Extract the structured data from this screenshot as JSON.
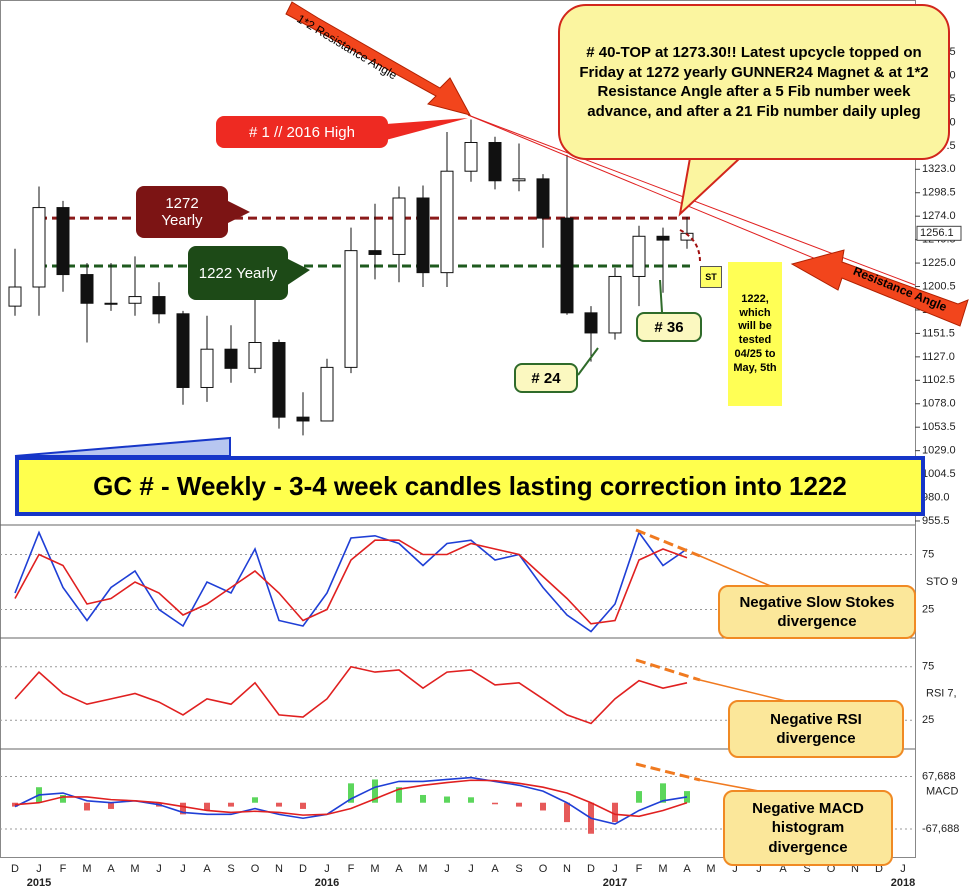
{
  "chart_data": [
    {
      "type": "candlestick",
      "categories": [
        "D",
        "J",
        "F",
        "M",
        "A",
        "M",
        "J",
        "J",
        "A",
        "S",
        "O",
        "N",
        "D",
        "J",
        "F",
        "M",
        "A",
        "M",
        "J",
        "J",
        "A",
        "S",
        "O",
        "N",
        "D",
        "J",
        "F",
        "M",
        "A",
        "M",
        "J",
        "J",
        "A",
        "S",
        "O",
        "N",
        "D",
        "J"
      ],
      "years": [
        "2015",
        "2016",
        "2017",
        "2018"
      ],
      "open": [
        1180,
        1200,
        1283,
        1213,
        1183,
        1183,
        1190,
        1172,
        1095,
        1135,
        1115,
        1142,
        1064,
        1060,
        1116,
        1238,
        1234,
        1293,
        1215,
        1321,
        1351,
        1311,
        1313,
        1272,
        1173,
        1152,
        1211,
        1253,
        1249,
        null,
        null,
        null,
        null,
        null,
        null,
        null,
        null,
        null
      ],
      "high": [
        1240,
        1305,
        1290,
        1225,
        1225,
        1232,
        1205,
        1175,
        1170,
        1160,
        1192,
        1145,
        1090,
        1125,
        1262,
        1287,
        1305,
        1306,
        1362,
        1375,
        1357,
        1350,
        1318,
        1338,
        1180,
        1220,
        1264,
        1262,
        1273.3,
        null,
        null,
        null,
        null,
        null,
        null,
        null,
        null,
        null
      ],
      "low": [
        1170,
        1170,
        1195,
        1142,
        1175,
        1170,
        1162,
        1077,
        1080,
        1100,
        1110,
        1052,
        1045,
        1061,
        1110,
        1208,
        1205,
        1200,
        1200,
        1310,
        1302,
        1300,
        1241,
        1171,
        1122,
        1145,
        1180,
        1194,
        1240,
        null,
        null,
        null,
        null,
        null,
        null,
        null,
        null,
        null
      ],
      "close": [
        1200,
        1283,
        1213,
        1183,
        1183,
        1190,
        1172,
        1095,
        1135,
        1115,
        1142,
        1064,
        1060,
        1116,
        1238,
        1234,
        1293,
        1215,
        1321,
        1351,
        1311,
        1313,
        1272,
        1173,
        1152,
        1211,
        1253,
        1249,
        1256.1,
        null,
        null,
        null,
        null,
        null,
        null,
        null,
        null,
        null
      ],
      "up_color": "#ffffff",
      "down_color": "#111111",
      "last_price": 1256.1,
      "levels": [
        {
          "value": 1272,
          "color": "#8b1a1a"
        },
        {
          "value": 1222,
          "color": "#1e5a1e"
        }
      ],
      "ylim": [
        951.3,
        1499.9
      ],
      "yticks": [
        1445.5,
        {
          "value": 1421,
          "label": "1421.0"
        },
        1396.5,
        {
          "value": 1372,
          "label": "1372.0"
        },
        1347.5,
        {
          "value": 1323,
          "label": "1323.0"
        },
        1298.5,
        {
          "value": 1274,
          "label": "1274.0"
        },
        1249.5,
        {
          "value": 1225,
          "label": "1225.0"
        },
        1200.5,
        {
          "value": 1176,
          "label": "1176.0"
        },
        1151.5,
        {
          "value": 1127,
          "label": "1127.0"
        },
        1102.5,
        {
          "value": 1078,
          "label": "1078.0"
        },
        1053.5,
        {
          "value": 1029,
          "label": "1029.0"
        },
        1004.5,
        {
          "value": 980,
          "label": "980.0"
        },
        955.5
      ]
    },
    {
      "type": "line",
      "label": "STO 9",
      "ylim": [
        0,
        100
      ],
      "yticks": [
        25,
        75
      ],
      "grid": true,
      "series": [
        {
          "color": "#1f3fd6",
          "values": [
            40,
            95,
            45,
            15,
            45,
            60,
            25,
            10,
            50,
            40,
            80,
            15,
            10,
            40,
            90,
            92,
            85,
            65,
            85,
            88,
            70,
            75,
            45,
            20,
            5,
            30,
            95,
            65,
            80,
            null,
            null,
            null,
            null,
            null,
            null,
            null,
            null,
            null
          ]
        },
        {
          "color": "#e02020",
          "values": [
            35,
            75,
            65,
            30,
            35,
            50,
            40,
            20,
            30,
            45,
            60,
            40,
            15,
            25,
            70,
            88,
            88,
            75,
            75,
            85,
            80,
            75,
            55,
            35,
            12,
            15,
            70,
            80,
            72,
            null,
            null,
            null,
            null,
            null,
            null,
            null,
            null,
            null
          ]
        }
      ]
    },
    {
      "type": "line",
      "label": "RSI 7,",
      "ylim": [
        0,
        100
      ],
      "yticks": [
        25,
        75
      ],
      "grid": true,
      "series": [
        {
          "color": "#e02020",
          "values": [
            45,
            70,
            50,
            40,
            45,
            50,
            42,
            30,
            45,
            40,
            60,
            30,
            28,
            45,
            75,
            70,
            72,
            55,
            70,
            72,
            58,
            60,
            45,
            30,
            22,
            45,
            62,
            55,
            60,
            null,
            null,
            null,
            null,
            null,
            null,
            null,
            null,
            null
          ]
        }
      ]
    },
    {
      "type": "macd",
      "label": "MACD",
      "ylim": [
        -140,
        136
      ],
      "yticks": [
        {
          "value": 67.688,
          "label": "67,688"
        },
        {
          "value": -67.688,
          "label": "-67,688"
        }
      ],
      "grid": true,
      "series": [
        {
          "color": "#1f3fd6",
          "values": [
            -10,
            20,
            25,
            5,
            0,
            5,
            -5,
            -25,
            -30,
            -30,
            -15,
            -30,
            -40,
            -30,
            10,
            40,
            55,
            55,
            60,
            65,
            55,
            45,
            30,
            0,
            -40,
            -55,
            -20,
            5,
            15,
            null,
            null,
            null,
            null,
            null,
            null,
            null,
            null,
            null
          ]
        },
        {
          "color": "#e02020",
          "values": [
            -5,
            0,
            15,
            15,
            8,
            5,
            0,
            -10,
            -20,
            -25,
            -22,
            -25,
            -32,
            -30,
            -15,
            10,
            35,
            45,
            52,
            58,
            57,
            50,
            40,
            25,
            0,
            -30,
            -35,
            -20,
            0,
            null,
            null,
            null,
            null,
            null,
            null,
            null,
            null,
            null
          ]
        }
      ],
      "histogram": {
        "up_color": "#33cc33",
        "down_color": "#e03030",
        "values": [
          -10,
          40,
          20,
          -20,
          -16,
          0,
          -10,
          -30,
          -20,
          -10,
          14,
          -10,
          -16,
          0,
          50,
          60,
          40,
          20,
          16,
          14,
          -4,
          -10,
          -20,
          -50,
          -80,
          -50,
          30,
          50,
          30,
          null,
          null,
          null,
          null,
          null,
          null,
          null,
          null,
          null
        ]
      }
    }
  ],
  "annotations": [
    "# 40-TOP at 1273.30!! Latest upcycle topped on Friday at 1272 yearly GUNNER24 Magnet & at 1*2 Resistance Angle after a 5 Fib number week advance, and after a 21 Fib number daily upleg",
    "1*2 Resistance Angle",
    "# 1 // 2016 High",
    "1272 Yearly",
    "1222 Yearly",
    "ST",
    "1222, which will be tested 04/25 to May, 5th",
    "# 36",
    "# 24",
    "Resistance Angle",
    "GC # - Weekly - 3-4 week candles lasting correction into 1222",
    "Negative Slow Stokes divergence",
    "Negative RSI divergence",
    "Negative MACD histogram divergence"
  ]
}
